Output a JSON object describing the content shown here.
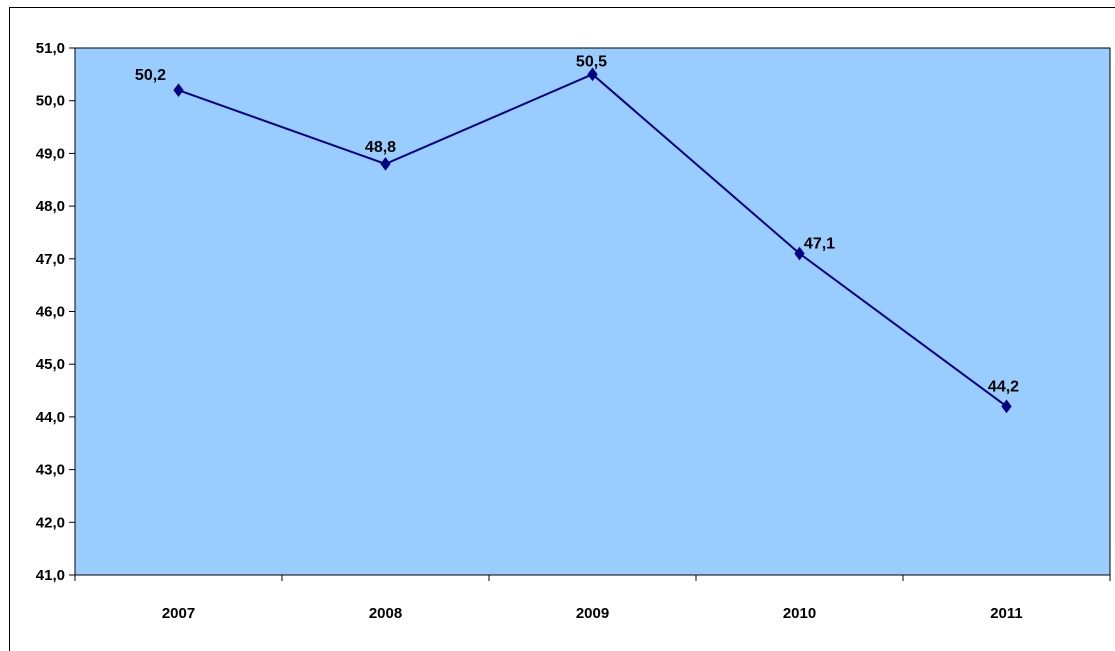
{
  "chart_data": {
    "type": "line",
    "categories": [
      "2007",
      "2008",
      "2009",
      "2010",
      "2011"
    ],
    "series": [
      {
        "values": [
          50.2,
          48.8,
          50.5,
          47.1,
          44.2
        ]
      }
    ],
    "data_labels": [
      "50,2",
      "48,8",
      "50,5",
      "47,1",
      "44,2"
    ],
    "ylim": [
      41,
      51
    ],
    "yticks": [
      41,
      42,
      43,
      44,
      45,
      46,
      47,
      48,
      49,
      50,
      51
    ],
    "ytick_labels": [
      "41,0",
      "42,0",
      "43,0",
      "44,0",
      "45,0",
      "46,0",
      "47,0",
      "48,0",
      "49,0",
      "50,0",
      "51,0"
    ],
    "grid": false,
    "legend": "none",
    "colors": {
      "plot_background": "#99ccff",
      "line": "#000080",
      "marker": "#000080"
    },
    "marker": "diamond-icon"
  }
}
